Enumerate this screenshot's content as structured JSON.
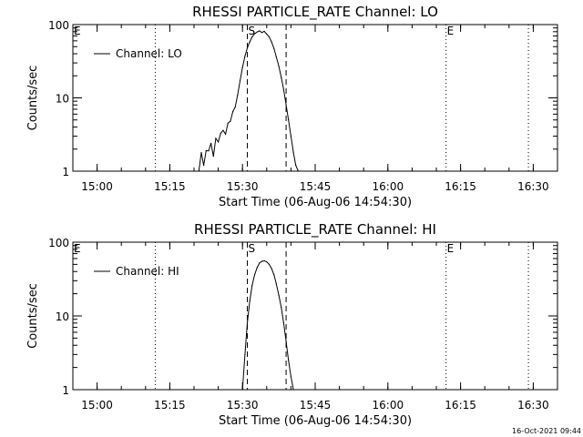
{
  "footer_timestamp": "16-Oct-2021 09:44",
  "chart_data": [
    {
      "type": "line",
      "title": "RHESSI PARTICLE_RATE Channel: LO",
      "xlabel": "Start Time (06-Aug-06 14:54:30)",
      "ylabel": "Counts/sec",
      "legend": "Channel: LO",
      "legend_placement": "top-left",
      "x_ticks": [
        "15:00",
        "15:15",
        "15:30",
        "15:45",
        "16:00",
        "16:15",
        "16:30"
      ],
      "y_ticks": [
        "1",
        "10",
        "100"
      ],
      "y_scale": "log",
      "xlim": [
        "14:55:00",
        "16:35:00"
      ],
      "ylim": [
        1,
        100
      ],
      "markers": [
        {
          "label": "E",
          "time": "14:55:00",
          "style": "dotted"
        },
        {
          "label": "",
          "time": "15:12:00",
          "style": "dotted"
        },
        {
          "label": "S",
          "time": "15:31:00",
          "style": "dashed"
        },
        {
          "label": "",
          "time": "15:39:00",
          "style": "dashed"
        },
        {
          "label": "E",
          "time": "16:12:00",
          "style": "dotted"
        },
        {
          "label": "",
          "time": "16:29:00",
          "style": "dotted"
        }
      ],
      "series": [
        {
          "name": "Channel: LO",
          "x": [
            "15:21:00",
            "15:21:30",
            "15:22:00",
            "15:22:30",
            "15:23:00",
            "15:23:30",
            "15:24:00",
            "15:24:30",
            "15:25:00",
            "15:25:30",
            "15:26:00",
            "15:26:30",
            "15:27:00",
            "15:27:30",
            "15:28:00",
            "15:28:30",
            "15:29:00",
            "15:29:30",
            "15:30:00",
            "15:30:30",
            "15:31:00",
            "15:31:30",
            "15:32:00",
            "15:32:30",
            "15:33:00",
            "15:33:30",
            "15:34:00",
            "15:34:30",
            "15:35:00",
            "15:35:30",
            "15:36:00",
            "15:36:30",
            "15:37:00",
            "15:37:30",
            "15:38:00",
            "15:38:30",
            "15:39:00",
            "15:39:30",
            "15:40:00",
            "15:40:30",
            "15:41:00",
            "15:41:30"
          ],
          "y": [
            1,
            1.8,
            1.2,
            1.9,
            1.9,
            2.4,
            1.6,
            2.8,
            2.5,
            3.3,
            3.6,
            3.2,
            4.5,
            4.8,
            6.5,
            7.5,
            11,
            17,
            26,
            37,
            48,
            58,
            68,
            75,
            79,
            82,
            78,
            81,
            74,
            68,
            58,
            47,
            36,
            27,
            19,
            13,
            8,
            5,
            3,
            1.8,
            1.2,
            1
          ]
        }
      ]
    },
    {
      "type": "line",
      "title": "RHESSI PARTICLE_RATE Channel: HI",
      "xlabel": "Start Time (06-Aug-06 14:54:30)",
      "ylabel": "Counts/sec",
      "legend": "Channel: HI",
      "legend_placement": "top-left",
      "x_ticks": [
        "15:00",
        "15:15",
        "15:30",
        "15:45",
        "16:00",
        "16:15",
        "16:30"
      ],
      "y_ticks": [
        "1",
        "10",
        "100"
      ],
      "y_scale": "log",
      "xlim": [
        "14:55:00",
        "16:35:00"
      ],
      "ylim": [
        1,
        100
      ],
      "markers": [
        {
          "label": "E",
          "time": "14:55:00",
          "style": "dotted"
        },
        {
          "label": "",
          "time": "15:12:00",
          "style": "dotted"
        },
        {
          "label": "S",
          "time": "15:31:00",
          "style": "dashed"
        },
        {
          "label": "",
          "time": "15:39:00",
          "style": "dashed"
        },
        {
          "label": "E",
          "time": "16:12:00",
          "style": "dotted"
        },
        {
          "label": "",
          "time": "16:29:00",
          "style": "dotted"
        }
      ],
      "series": [
        {
          "name": "Channel: HI",
          "x": [
            "15:30:00",
            "15:30:30",
            "15:31:00",
            "15:31:30",
            "15:32:00",
            "15:32:30",
            "15:33:00",
            "15:33:30",
            "15:34:00",
            "15:34:30",
            "15:35:00",
            "15:35:30",
            "15:36:00",
            "15:36:30",
            "15:37:00",
            "15:37:30",
            "15:38:00",
            "15:38:30",
            "15:39:00",
            "15:39:30",
            "15:40:00",
            "15:40:30"
          ],
          "y": [
            1,
            3,
            8,
            16,
            26,
            36,
            45,
            52,
            55,
            56,
            54,
            50,
            44,
            36,
            27,
            19,
            13,
            8,
            4.5,
            2.5,
            1.5,
            1
          ]
        }
      ]
    }
  ]
}
